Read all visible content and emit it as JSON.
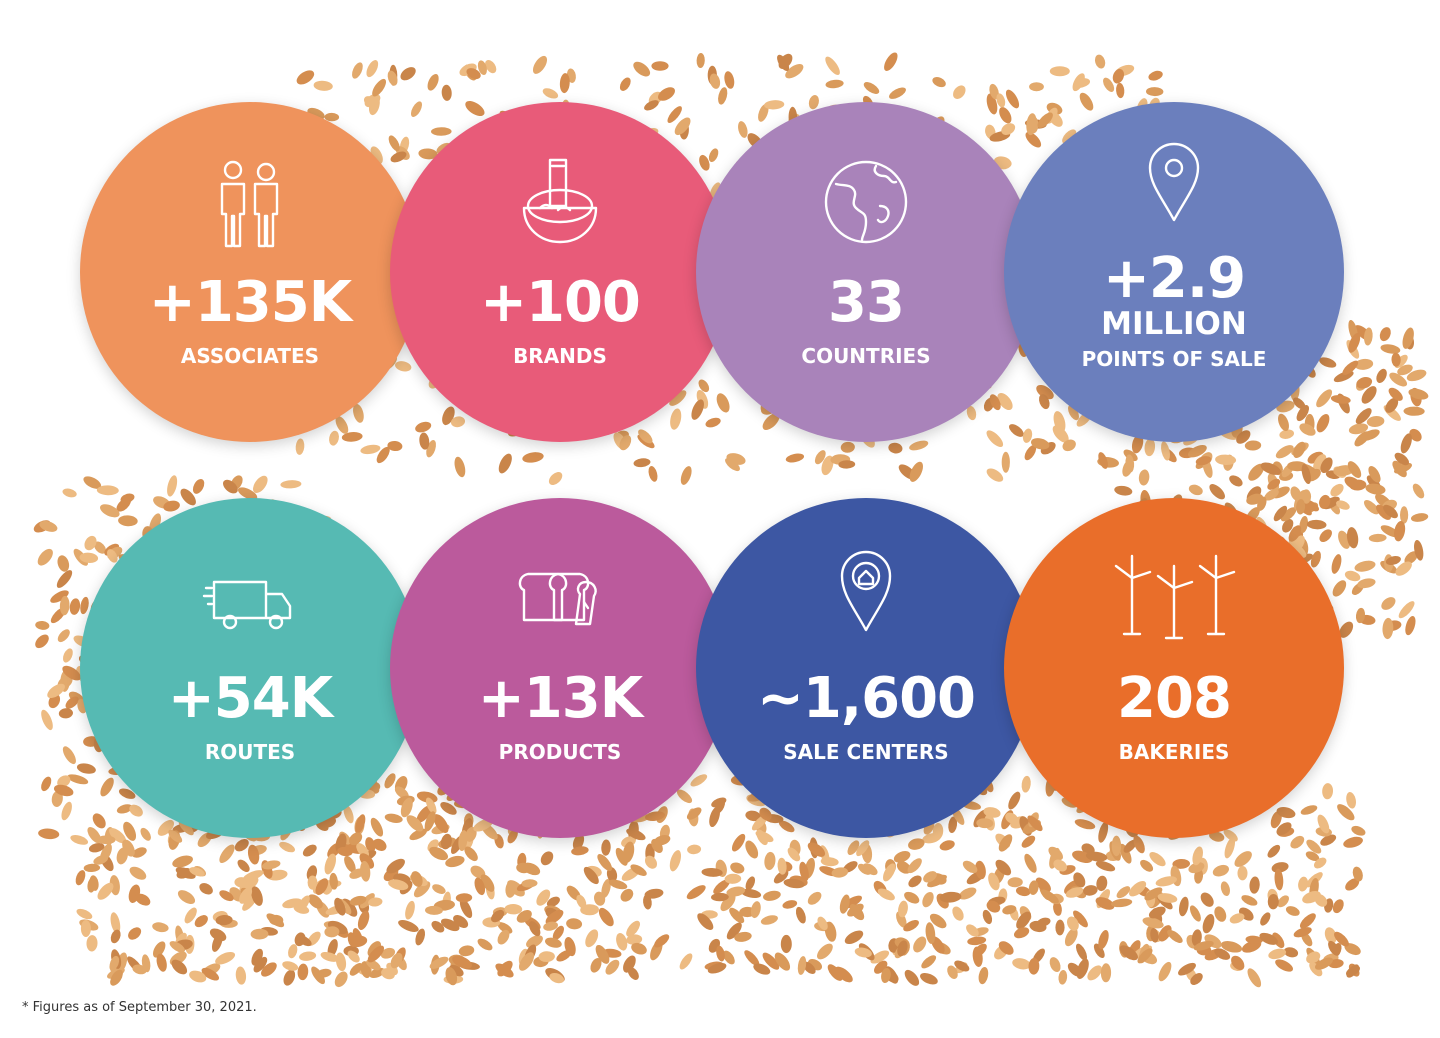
{
  "stats": [
    {
      "value": "+135K",
      "label": "ASSOCIATES"
    },
    {
      "value": "+100",
      "label": "BRANDS"
    },
    {
      "value": "33",
      "label": "COUNTRIES"
    },
    {
      "value": "+2.9",
      "unit": "MILLION",
      "label": "POINTS OF SALE"
    },
    {
      "value": "+54K",
      "label": "ROUTES"
    },
    {
      "value": "+13K",
      "label": "PRODUCTS"
    },
    {
      "value": "~1,600",
      "label": "SALE CENTERS"
    },
    {
      "value": "208",
      "label": "BAKERIES"
    }
  ],
  "footnote": "* Figures as of September 30, 2021."
}
